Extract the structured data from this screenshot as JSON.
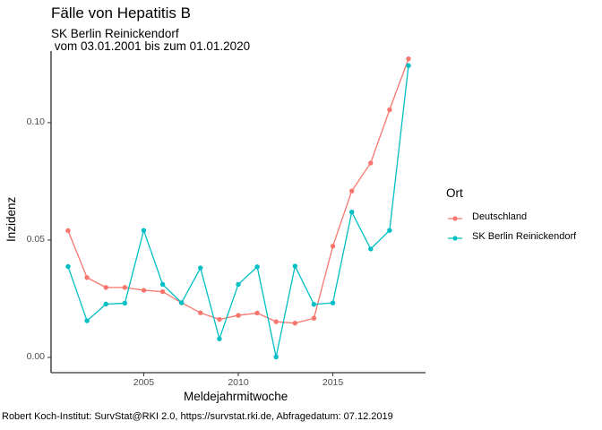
{
  "chart_data": {
    "type": "line",
    "title": "Fälle von Hepatitis B",
    "subtitle": "SK Berlin Reinickendorf\n vom 03.01.2001 bis zum 01.01.2020",
    "xlabel": "Meldejahrmitwoche",
    "ylabel": "Inzidenz",
    "caption": "Robert Koch-Institut: SurvStat@RKI 2.0, https://survstat.rki.de, Abfragedatum: 07.12.2019",
    "legend_title": "Ort",
    "legend_position": "right",
    "xlim": [
      2000.1,
      2019.9
    ],
    "ylim": [
      -0.0065,
      0.1305
    ],
    "x_ticks": [
      2005,
      2010,
      2015
    ],
    "x_tick_labels": [
      "2005",
      "2010",
      "2015"
    ],
    "y_ticks": [
      0.0,
      0.05,
      0.1
    ],
    "y_tick_labels": [
      "0.00",
      "0.05",
      "0.10"
    ],
    "grid": false,
    "x": [
      2001,
      2002,
      2003,
      2004,
      2005,
      2006,
      2007,
      2008,
      2009,
      2010,
      2011,
      2012,
      2013,
      2014,
      2015,
      2016,
      2017,
      2018,
      2019
    ],
    "series": [
      {
        "name": "Deutschland",
        "color": "#F8766D",
        "values": [
          0.054,
          0.034,
          0.0298,
          0.0298,
          0.0286,
          0.028,
          0.0233,
          0.019,
          0.0162,
          0.0179,
          0.0189,
          0.0152,
          0.0146,
          0.0167,
          0.0474,
          0.0709,
          0.0828,
          0.1055,
          0.1272
        ]
      },
      {
        "name": "SK Berlin Reinickendorf",
        "color": "#00BFC4",
        "values": [
          0.0387,
          0.0156,
          0.0227,
          0.0231,
          0.0541,
          0.0311,
          0.0233,
          0.0381,
          0.0079,
          0.0311,
          0.0386,
          0.0002,
          0.0389,
          0.0226,
          0.0232,
          0.0619,
          0.0462,
          0.0541,
          0.1243
        ]
      }
    ]
  }
}
